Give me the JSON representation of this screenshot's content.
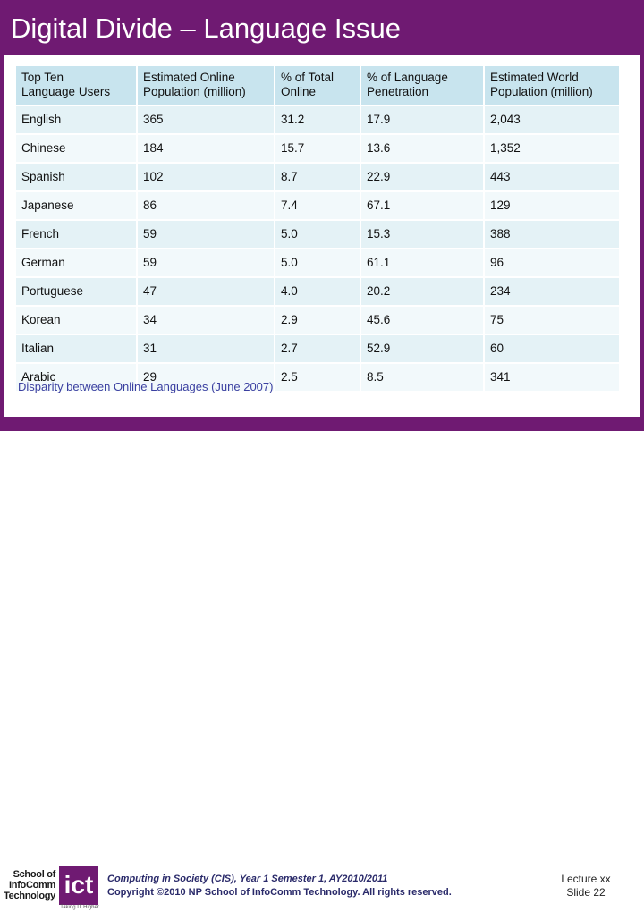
{
  "title": "Digital Divide – Language Issue",
  "table": {
    "headers": [
      "Top Ten\nLanguage Users",
      "Estimated Online\nPopulation  (million)",
      "%  of Total\nOnline",
      "%  of Language\nPenetration",
      "Estimated World\nPopulation (million)"
    ],
    "rows": [
      [
        "English",
        "365",
        "31.2",
        "17.9",
        "2,043"
      ],
      [
        "Chinese",
        "184",
        "15.7",
        "13.6",
        "1,352"
      ],
      [
        "Spanish",
        "102",
        "8.7",
        "22.9",
        "443"
      ],
      [
        "Japanese",
        "86",
        "7.4",
        "67.1",
        "129"
      ],
      [
        "French",
        "59",
        "5.0",
        "15.3",
        "388"
      ],
      [
        "German",
        "59",
        "5.0",
        "61.1",
        "96"
      ],
      [
        "Portuguese",
        "47",
        "4.0",
        "20.2",
        "234"
      ],
      [
        "Korean",
        "34",
        "2.9",
        "45.6",
        "75"
      ],
      [
        "Italian",
        "31",
        "2.7",
        "52.9",
        "60"
      ],
      [
        "Arabic",
        "29",
        "2.5",
        "8.5",
        "341"
      ]
    ]
  },
  "caption": "Disparity between Online Languages (June 2007)",
  "logo": {
    "text": "School of InfoComm Technology",
    "mark": "ict",
    "tagline": "Taking IT Higher"
  },
  "footer": {
    "line1": "Computing in Society (CIS), Year 1 Semester 1, AY2010/2011",
    "line2": "Copyright ©2010 NP School of InfoComm Technology.  All rights reserved."
  },
  "slide": {
    "lecture": "Lecture  xx",
    "slide": "Slide 22"
  },
  "colors": {
    "accent": "#6f1a72",
    "header_cell": "#c8e4ee",
    "row_odd": "#e4f2f6",
    "row_even": "#f2f9fb",
    "caption": "#3a3fa0"
  }
}
